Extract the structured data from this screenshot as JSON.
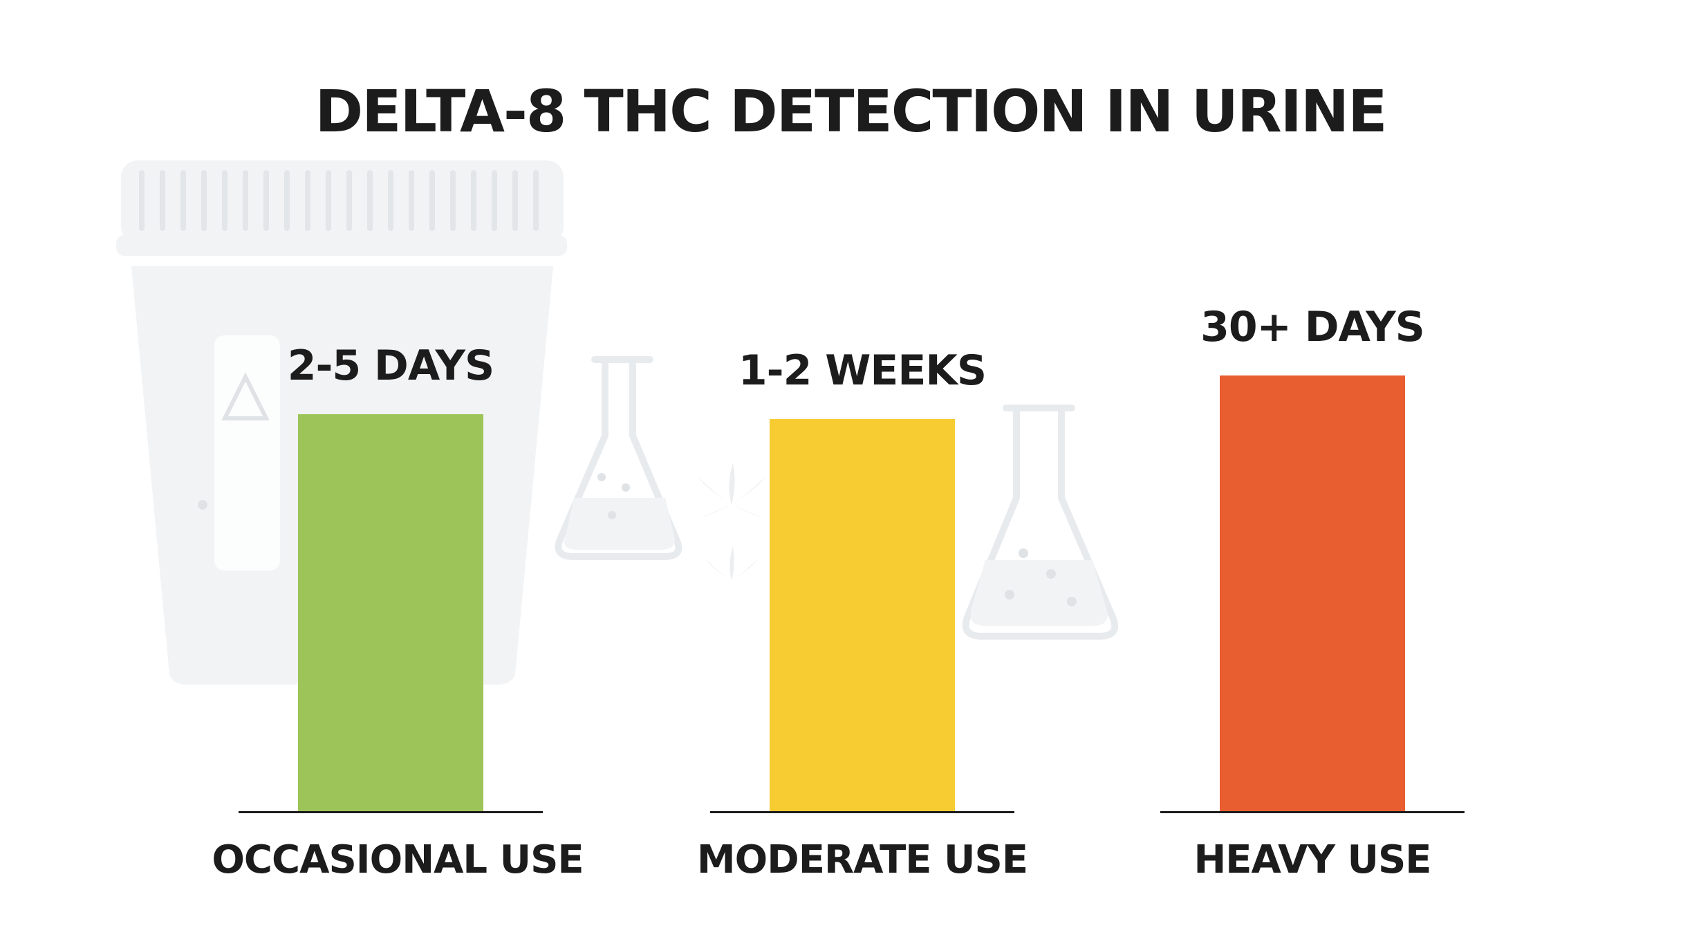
{
  "chart_data": {
    "type": "bar",
    "title": "DELTA-8 THC DETECTION IN URINE",
    "categories": [
      "OCCASIONAL USE",
      "MODERATE USE",
      "HEAVY USE"
    ],
    "value_labels": [
      "2-5 DAYS",
      "1-2 WEEKS",
      "30+ DAYS"
    ],
    "values": [
      0.82,
      0.81,
      0.9
    ],
    "colors": [
      "#9cc458",
      "#f7cc33",
      "#e95e30"
    ],
    "grid": false,
    "legend": "none"
  },
  "decorations": {
    "background_icons": [
      "urine-cup-icon",
      "flask-icon",
      "cannabis-leaf-icon"
    ]
  },
  "colors": {
    "text": "#1c1c1c",
    "baseline": "#1c1c1c",
    "background": "#ffffff",
    "watermark": "#e8ebee"
  }
}
